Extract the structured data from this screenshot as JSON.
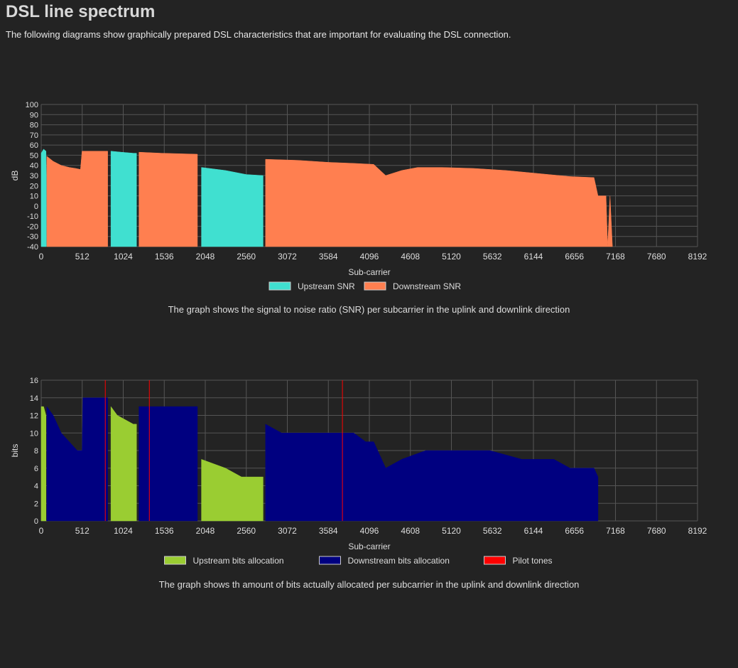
{
  "page": {
    "title": "DSL line spectrum",
    "subtitle": "The following diagrams show graphically prepared DSL characteristics that are important for evaluating the DSL connection."
  },
  "colors": {
    "background": "#232323",
    "grid": "#555555",
    "text": "#dddddd"
  },
  "chart_data": [
    {
      "type": "area",
      "title": "",
      "xlabel": "Sub-carrier",
      "ylabel": "dB",
      "xlim": [
        0,
        8192
      ],
      "ylim": [
        -40,
        100
      ],
      "xticks": [
        0,
        512,
        1024,
        1536,
        2048,
        2560,
        3072,
        3584,
        4096,
        4608,
        5120,
        5632,
        6144,
        6656,
        7168,
        7680,
        8192
      ],
      "yticks": [
        100,
        90,
        80,
        70,
        60,
        50,
        40,
        30,
        20,
        10,
        0,
        -10,
        -20,
        -30,
        -40
      ],
      "legend_position": "bottom",
      "caption": "The graph shows the signal to noise ratio (SNR) per subcarrier in the uplink and downlink direction",
      "series": [
        {
          "name": "Upstream SNR",
          "color": "#40e0d0",
          "segments": [
            [
              [
                0,
                52
              ],
              [
                30,
                56
              ],
              [
                60,
                54
              ],
              [
                64,
                30
              ]
            ],
            [
              [
                870,
                54
              ],
              [
                1000,
                53
              ],
              [
                1150,
                52
              ],
              [
                1190,
                52
              ]
            ],
            [
              [
                2000,
                38
              ],
              [
                2300,
                35
              ],
              [
                2560,
                31
              ],
              [
                2770,
                30
              ]
            ]
          ]
        },
        {
          "name": "Downstream SNR",
          "color": "#ff7f50",
          "segments": [
            [
              [
                70,
                49
              ],
              [
                150,
                44
              ],
              [
                250,
                40
              ],
              [
                350,
                38
              ],
              [
                430,
                37
              ],
              [
                490,
                36
              ],
              [
                510,
                54
              ],
              [
                800,
                54
              ],
              [
                830,
                54
              ]
            ],
            [
              [
                1220,
                53
              ],
              [
                1500,
                52
              ],
              [
                1950,
                51
              ]
            ],
            [
              [
                2800,
                46
              ],
              [
                3200,
                45
              ],
              [
                3584,
                43
              ],
              [
                3900,
                42
              ],
              [
                4150,
                41
              ],
              [
                4300,
                30
              ],
              [
                4500,
                35
              ],
              [
                4700,
                38
              ],
              [
                5000,
                38
              ],
              [
                5400,
                37
              ],
              [
                5800,
                35
              ],
              [
                6200,
                32
              ],
              [
                6600,
                29
              ],
              [
                6900,
                28
              ],
              [
                6950,
                10
              ],
              [
                7050,
                10
              ],
              [
                7070,
                -40
              ],
              [
                7100,
                10
              ],
              [
                7130,
                -40
              ]
            ]
          ]
        }
      ]
    },
    {
      "type": "area",
      "title": "",
      "xlabel": "Sub-carrier",
      "ylabel": "bits",
      "xlim": [
        0,
        8192
      ],
      "ylim": [
        0,
        16
      ],
      "xticks": [
        0,
        512,
        1024,
        1536,
        2048,
        2560,
        3072,
        3584,
        4096,
        4608,
        5120,
        5632,
        6144,
        6656,
        7168,
        7680,
        8192
      ],
      "yticks": [
        16,
        14,
        12,
        10,
        8,
        6,
        4,
        2,
        0
      ],
      "legend_position": "bottom",
      "caption": "The graph shows th amount of bits actually allocated per subcarrier in the uplink and downlink direction",
      "series": [
        {
          "name": "Upstream bits allocation",
          "color": "#9acd32",
          "segments": [
            [
              [
                0,
                13
              ],
              [
                30,
                13
              ],
              [
                60,
                12
              ]
            ],
            [
              [
                870,
                13
              ],
              [
                950,
                12
              ],
              [
                1150,
                11
              ],
              [
                1190,
                11
              ]
            ],
            [
              [
                2000,
                7
              ],
              [
                2300,
                6
              ],
              [
                2500,
                5
              ],
              [
                2770,
                5
              ]
            ]
          ]
        },
        {
          "name": "Downstream bits allocation",
          "color": "#000080",
          "segments": [
            [
              [
                70,
                13
              ],
              [
                150,
                12
              ],
              [
                250,
                10
              ],
              [
                350,
                9
              ],
              [
                450,
                8
              ],
              [
                510,
                8
              ],
              [
                520,
                14
              ],
              [
                800,
                14
              ],
              [
                830,
                14
              ]
            ],
            [
              [
                1220,
                13
              ],
              [
                1500,
                13
              ],
              [
                1950,
                13
              ]
            ],
            [
              [
                2800,
                11
              ],
              [
                3000,
                10
              ],
              [
                3584,
                10
              ],
              [
                3900,
                10
              ],
              [
                4050,
                9
              ],
              [
                4150,
                9
              ],
              [
                4300,
                6
              ],
              [
                4500,
                7
              ],
              [
                4800,
                8
              ],
              [
                5200,
                8
              ],
              [
                5600,
                8
              ],
              [
                6000,
                7
              ],
              [
                6400,
                7
              ],
              [
                6600,
                6
              ],
              [
                6900,
                6
              ],
              [
                6950,
                5
              ]
            ]
          ]
        },
        {
          "name": "Pilot tones",
          "color": "#ff0000",
          "tones": [
            800,
            1350,
            3760
          ]
        }
      ]
    }
  ]
}
